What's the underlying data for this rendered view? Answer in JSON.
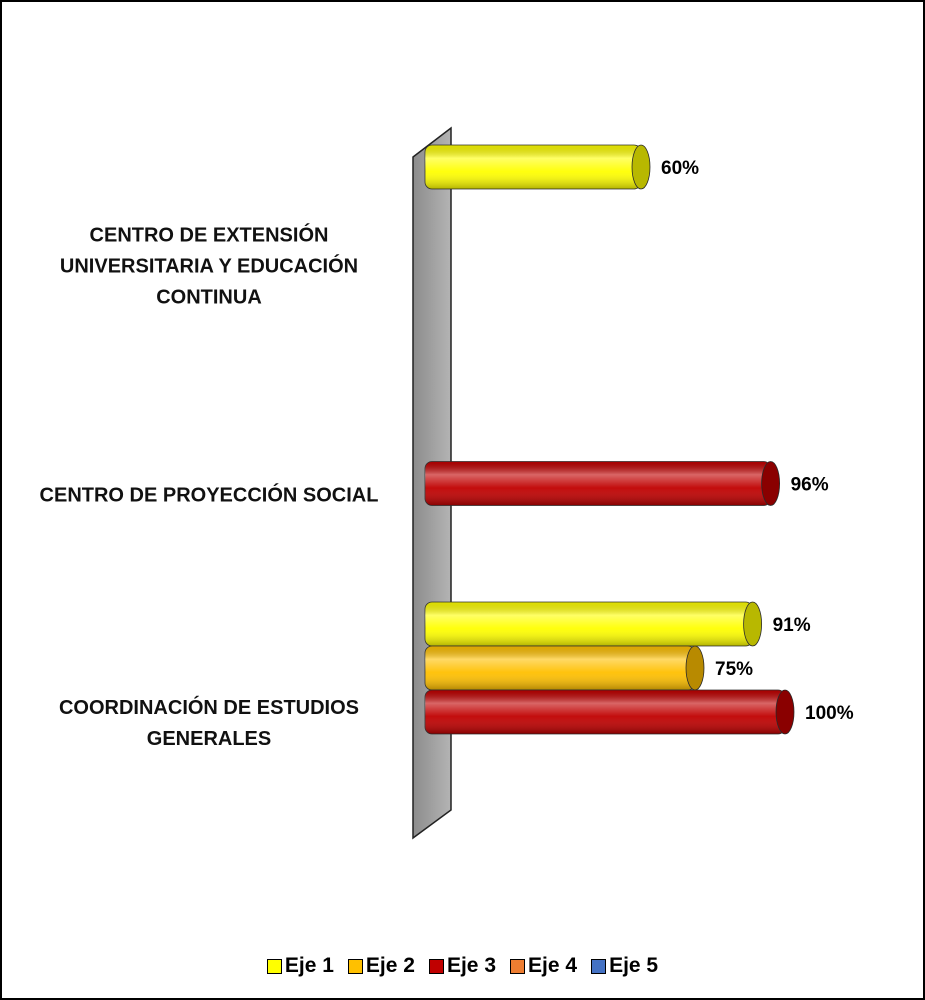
{
  "chart_data": {
    "type": "bar",
    "categories": [
      "CENTRO DE EXTENSIÓN UNIVERSITARIA Y EDUCACIÓN CONTINUA",
      "CENTRO DE PROYECCIÓN SOCIAL",
      "COORDINACIÓN DE ESTUDIOS GENERALES"
    ],
    "series": [
      {
        "name": "Eje 1",
        "color": "#ffff00",
        "values": [
          60,
          null,
          91
        ],
        "value_labels": [
          "60%",
          null,
          "91%"
        ]
      },
      {
        "name": "Eje 2",
        "color": "#ffc000",
        "values": [
          null,
          null,
          75
        ],
        "value_labels": [
          null,
          null,
          "75%"
        ]
      },
      {
        "name": "Eje 3",
        "color": "#c00000",
        "values": [
          null,
          96,
          100
        ],
        "value_labels": [
          null,
          "96%",
          "100%"
        ]
      },
      {
        "name": "Eje 4",
        "color": "#ed7d31",
        "values": [
          null,
          null,
          null
        ]
      },
      {
        "name": "Eje 5",
        "color": "#4472c4",
        "values": [
          null,
          null,
          null
        ]
      }
    ],
    "xlim": [
      0,
      100
    ],
    "legend": "bottom"
  }
}
